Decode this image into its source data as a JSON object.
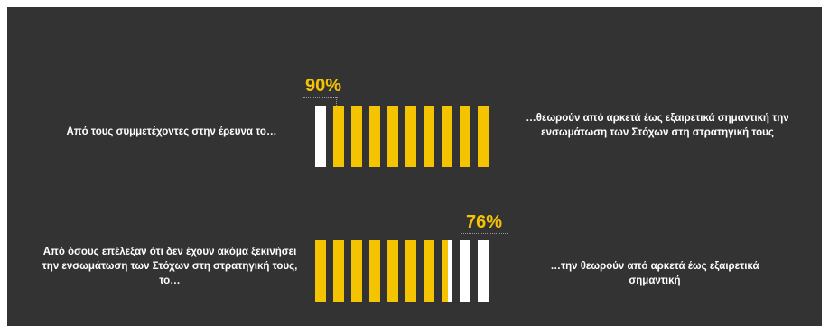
{
  "chart_data": {
    "type": "pictograph",
    "colors": {
      "filled": "#f5c400",
      "empty": "#ffffff",
      "background": "#333333",
      "accent_text": "#f5c400"
    },
    "rows": [
      {
        "left_text": "Από τους συμμετέχοντες στην έρευνα το…",
        "right_text": "…θεωρούν από αρκετά έως εξαιρετικά σημαντική την ενσωμάτωση των Στόχων στη στρατηγική τους",
        "percent_label": "90%",
        "value": 90,
        "total_units": 10,
        "filled_units": 9
      },
      {
        "left_text": "Από όσους επέλεξαν ότι δεν έχουν ακόμα ξεκινήσει την ενσωμάτωση των Στόχων στη στρατηγική τους, το…",
        "right_text": "…την θεωρούν από αρκετά έως εξαιρετικά σημαντική",
        "percent_label": "76%",
        "value": 76,
        "total_units": 10,
        "filled_units": 7.6
      }
    ]
  }
}
